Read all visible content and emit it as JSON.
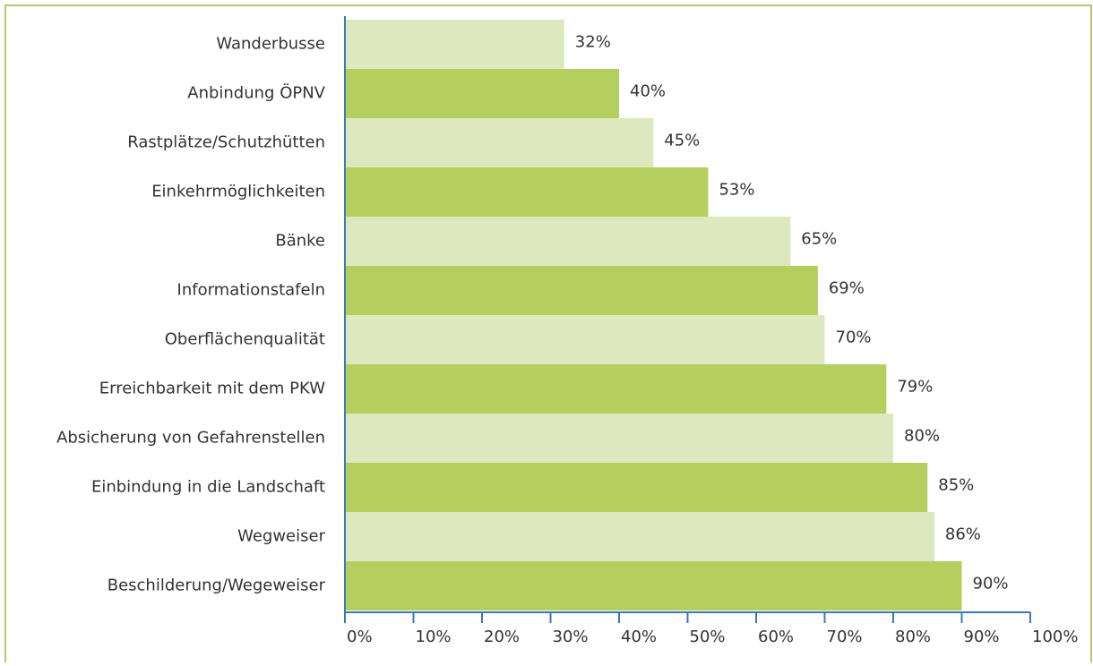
{
  "chart_data": {
    "type": "barh",
    "categories": [
      "Wanderbusse",
      "Anbindung ÖPNV",
      "Rastplätze/Schutzhütten",
      "Einkehrmöglichkeiten",
      "Bänke",
      "Informationstafeln",
      "Oberflächenqualität",
      "Erreichbarkeit mit dem PKW",
      "Absicherung von Gefahrenstellen",
      "Einbindung in die Landschaft",
      "Wegweiser",
      "Beschilderung/Wegeweiser"
    ],
    "values": [
      32,
      40,
      45,
      53,
      65,
      69,
      70,
      79,
      80,
      85,
      86,
      90
    ],
    "value_labels": [
      "32%",
      "40%",
      "45%",
      "53%",
      "65%",
      "69%",
      "70%",
      "79%",
      "80%",
      "85%",
      "86%",
      "90%"
    ],
    "colors": [
      "#dde8bf",
      "#b5cf5f"
    ],
    "xlim": [
      0,
      100
    ],
    "xticks": [
      {
        "value": 0,
        "label": "0%"
      },
      {
        "value": 10,
        "label": "10%"
      },
      {
        "value": 20,
        "label": "20%"
      },
      {
        "value": 30,
        "label": "30%"
      },
      {
        "value": 40,
        "label": "40%"
      },
      {
        "value": 50,
        "label": "50%"
      },
      {
        "value": 60,
        "label": "60%"
      },
      {
        "value": 70,
        "label": "70%"
      },
      {
        "value": 80,
        "label": "80%"
      },
      {
        "value": 90,
        "label": "90%"
      },
      {
        "value": 100,
        "label": "100%"
      }
    ],
    "grid": false
  }
}
